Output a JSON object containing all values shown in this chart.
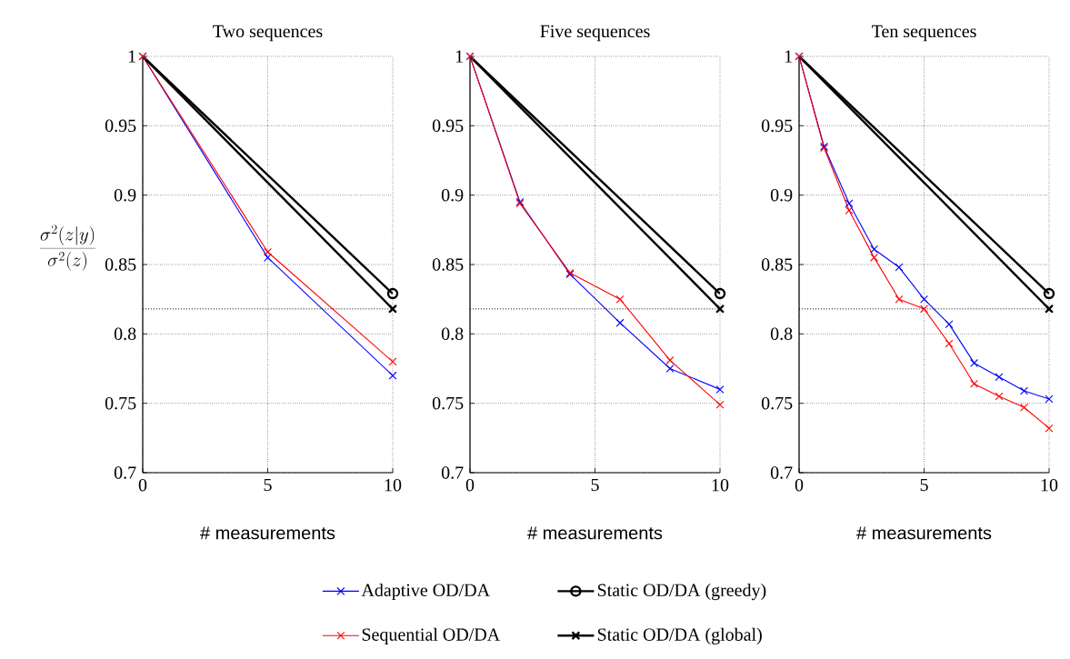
{
  "chart_data": [
    {
      "type": "line",
      "title": "Two sequences",
      "xlabel": "# measurements",
      "ylabel": "\\frac{\\sigma^2(z|y)}{\\sigma^2(z)}",
      "xlim": [
        0,
        10
      ],
      "ylim": [
        0.7,
        1
      ],
      "xticks": [
        0,
        5,
        10
      ],
      "yticks": [
        0.7,
        0.75,
        0.8,
        0.85,
        0.9,
        0.95,
        1
      ],
      "grid": true,
      "legend": "bottom",
      "ref_lines": [
        {
          "axis": "y",
          "value": 0.818,
          "line_style": "dotted"
        }
      ],
      "series": [
        {
          "name": "Adaptive OD/DA",
          "color": "#0000ff",
          "marker": "cross",
          "x": [
            0,
            5,
            10
          ],
          "values": [
            1,
            0.855,
            0.77
          ]
        },
        {
          "name": "Sequential OD/DA",
          "color": "#ff0000",
          "marker": "cross",
          "x": [
            0,
            5,
            10
          ],
          "values": [
            1,
            0.859,
            0.78
          ]
        },
        {
          "color": "#000000",
          "marker": "none",
          "x": [
            0,
            10
          ],
          "values": [
            1,
            0.829
          ]
        },
        {
          "name": "Static OD/DA (greedy)",
          "color": "#000000",
          "marker": "circle",
          "x": [
            10
          ],
          "values": [
            0.829
          ]
        },
        {
          "color": "#000000",
          "marker": "none",
          "x": [
            0,
            10
          ],
          "values": [
            1,
            0.818
          ]
        },
        {
          "name": "Static OD/DA (global)",
          "color": "#000000",
          "marker": "cross",
          "x": [
            10
          ],
          "values": [
            0.818
          ]
        }
      ]
    },
    {
      "type": "line",
      "title": "Five sequences",
      "xlabel": "# measurements",
      "xlim": [
        0,
        10
      ],
      "ylim": [
        0.7,
        1
      ],
      "xticks": [
        0,
        5,
        10
      ],
      "yticks": [
        0.7,
        0.75,
        0.8,
        0.85,
        0.9,
        0.95,
        1
      ],
      "grid": true,
      "ref_lines": [
        {
          "axis": "y",
          "value": 0.818,
          "line_style": "dotted"
        }
      ],
      "series": [
        {
          "color": "#0000ff",
          "marker": "cross",
          "x": [
            0,
            2,
            4,
            6,
            8,
            10
          ],
          "values": [
            1,
            0.895,
            0.843,
            0.808,
            0.775,
            0.76
          ]
        },
        {
          "color": "#ff0000",
          "marker": "cross",
          "x": [
            0,
            2,
            4,
            6,
            8,
            10
          ],
          "values": [
            1,
            0.894,
            0.844,
            0.825,
            0.781,
            0.749
          ]
        },
        {
          "color": "#000000",
          "marker": "none",
          "x": [
            0,
            10
          ],
          "values": [
            1,
            0.829
          ]
        },
        {
          "color": "#000000",
          "marker": "circle",
          "x": [
            10
          ],
          "values": [
            0.829
          ]
        },
        {
          "color": "#000000",
          "marker": "none",
          "x": [
            0,
            10
          ],
          "values": [
            1,
            0.818
          ]
        },
        {
          "color": "#000000",
          "marker": "cross",
          "x": [
            10
          ],
          "values": [
            0.818
          ]
        }
      ]
    },
    {
      "type": "line",
      "title": "Ten sequences",
      "xlabel": "# measurements",
      "xlim": [
        0,
        10
      ],
      "ylim": [
        0.7,
        1
      ],
      "xticks": [
        0,
        5,
        10
      ],
      "yticks": [
        0.7,
        0.75,
        0.8,
        0.85,
        0.9,
        0.95,
        1
      ],
      "grid": true,
      "ref_lines": [
        {
          "axis": "y",
          "value": 0.818,
          "line_style": "dotted"
        }
      ],
      "series": [
        {
          "color": "#0000ff",
          "marker": "cross",
          "x": [
            0,
            1,
            2,
            3,
            4,
            5,
            6,
            7,
            8,
            9,
            10
          ],
          "values": [
            1,
            0.935,
            0.894,
            0.861,
            0.848,
            0.825,
            0.807,
            0.779,
            0.769,
            0.759,
            0.753
          ]
        },
        {
          "color": "#ff0000",
          "marker": "cross",
          "x": [
            0,
            1,
            2,
            3,
            4,
            5,
            6,
            7,
            8,
            9,
            10
          ],
          "values": [
            1,
            0.934,
            0.889,
            0.855,
            0.825,
            0.818,
            0.793,
            0.764,
            0.755,
            0.747,
            0.732
          ]
        },
        {
          "color": "#000000",
          "marker": "none",
          "x": [
            0,
            10
          ],
          "values": [
            1,
            0.829
          ]
        },
        {
          "color": "#000000",
          "marker": "circle",
          "x": [
            10
          ],
          "values": [
            0.829
          ]
        },
        {
          "color": "#000000",
          "marker": "none",
          "x": [
            0,
            10
          ],
          "values": [
            1,
            0.818
          ]
        },
        {
          "color": "#000000",
          "marker": "cross",
          "x": [
            10
          ],
          "values": [
            0.818
          ]
        }
      ]
    }
  ]
}
